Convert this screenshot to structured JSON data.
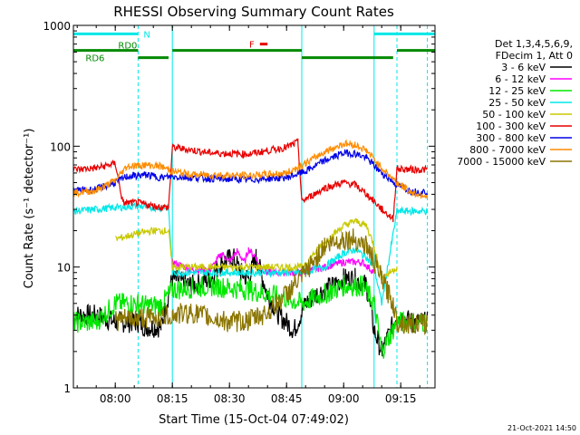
{
  "chart_data": {
    "type": "line",
    "title": "RHESSI Observing Summary Count Rates",
    "xlabel": "Start Time (15-Oct-04 07:49:02)",
    "ylabel": "Count Rate (s⁻¹ detector⁻¹)",
    "x_unit": "minutes",
    "xlim": [
      "07:49",
      "09:24"
    ],
    "x_ticks": [
      "08:00",
      "08:15",
      "08:30",
      "08:45",
      "09:00",
      "09:15"
    ],
    "yscale": "log",
    "ylim": [
      1,
      1000
    ],
    "y_ticks": [
      "1",
      "10",
      "100",
      "1000"
    ],
    "legend_position": "right",
    "legend_header": [
      "Det 1,3,4,5,6,9,",
      "FDecim 1, Att 0"
    ],
    "timestamp": "21-Oct-2021 14:50",
    "flags": [
      {
        "label": "N",
        "color": "#00e8e8",
        "segments": [
          [
            "07:49",
            "08:06"
          ],
          [
            "09:08",
            "09:24"
          ]
        ],
        "level": 850
      },
      {
        "label": "RD0",
        "color": "#008a00",
        "segments": [
          [
            "07:49",
            "08:06"
          ],
          [
            "08:15",
            "08:49"
          ],
          [
            "09:14",
            "09:24"
          ]
        ],
        "level": 620
      },
      {
        "label": "RD6",
        "color": "#008a00",
        "segments": [
          [
            "08:06",
            "08:14"
          ],
          [
            "08:49",
            "09:13"
          ]
        ],
        "level": 540
      },
      {
        "label": "F",
        "color": "#e80000",
        "segments": [
          [
            "08:38",
            "08:40"
          ]
        ],
        "level": 700
      }
    ],
    "vlines": [
      {
        "time": "07:49",
        "style": "solid",
        "color": "#00e8e8"
      },
      {
        "time": "08:06",
        "style": "dashed",
        "color": "#00e8e8"
      },
      {
        "time": "08:15",
        "style": "solid",
        "color": "#00e8e8"
      },
      {
        "time": "08:49",
        "style": "solid",
        "color": "#00e8e8"
      },
      {
        "time": "09:08",
        "style": "solid",
        "color": "#00e8e8"
      },
      {
        "time": "09:14",
        "style": "dashed",
        "color": "#00e8e8"
      },
      {
        "time": "09:22",
        "style": "dashed",
        "color": "#00e8e8"
      }
    ],
    "series": [
      {
        "name": "3 - 6 keV",
        "color": "#000000",
        "points": [
          [
            "07:49",
            4
          ],
          [
            "07:55",
            4
          ],
          [
            "08:00",
            3.5
          ],
          [
            "08:06",
            3.5
          ],
          [
            "08:08",
            3.2
          ],
          [
            "08:12",
            3.2
          ],
          [
            "08:15",
            8
          ],
          [
            "08:20",
            7
          ],
          [
            "08:25",
            8
          ],
          [
            "08:28",
            11
          ],
          [
            "08:31",
            12
          ],
          [
            "08:33",
            9
          ],
          [
            "08:35",
            8
          ],
          [
            "08:37",
            12
          ],
          [
            "08:40",
            6
          ],
          [
            "08:43",
            4
          ],
          [
            "08:47",
            3
          ],
          [
            "08:50",
            5
          ],
          [
            "08:53",
            6
          ],
          [
            "08:57",
            7
          ],
          [
            "09:00",
            8
          ],
          [
            "09:03",
            8
          ],
          [
            "09:06",
            7
          ],
          [
            "09:08",
            3
          ],
          [
            "09:10",
            2
          ],
          [
            "09:14",
            4
          ],
          [
            "09:18",
            3.5
          ],
          [
            "09:22",
            3.5
          ]
        ]
      },
      {
        "name": "6 - 12 keV",
        "color": "#ff00ff",
        "points": [
          [
            "07:49",
            null
          ],
          [
            "08:15",
            11
          ],
          [
            "08:20",
            9.5
          ],
          [
            "08:25",
            9.5
          ],
          [
            "08:28",
            13
          ],
          [
            "08:30",
            11
          ],
          [
            "08:32",
            13.5
          ],
          [
            "08:34",
            11
          ],
          [
            "08:35",
            14
          ],
          [
            "08:37",
            12
          ],
          [
            "08:38",
            10
          ],
          [
            "08:40",
            9
          ],
          [
            "08:45",
            9
          ],
          [
            "08:49",
            9
          ],
          [
            "08:55",
            10
          ],
          [
            "09:00",
            11
          ],
          [
            "09:05",
            11
          ],
          [
            "09:08",
            9
          ]
        ]
      },
      {
        "name": "12 - 25 keV",
        "color": "#00e800",
        "points": [
          [
            "07:49",
            3.5
          ],
          [
            "07:55",
            3.5
          ],
          [
            "08:00",
            5
          ],
          [
            "08:06",
            5
          ],
          [
            "08:08",
            4.8
          ],
          [
            "08:12",
            4.8
          ],
          [
            "08:15",
            6.5
          ],
          [
            "08:25",
            7
          ],
          [
            "08:35",
            6.5
          ],
          [
            "08:45",
            5.5
          ],
          [
            "08:49",
            5
          ],
          [
            "08:55",
            6
          ],
          [
            "09:00",
            7
          ],
          [
            "09:05",
            7
          ],
          [
            "09:08",
            5
          ],
          [
            "09:10",
            2
          ],
          [
            "09:14",
            3.5
          ],
          [
            "09:18",
            3.5
          ],
          [
            "09:22",
            3.5
          ]
        ]
      },
      {
        "name": "25 - 50 keV",
        "color": "#00e8e8",
        "points": [
          [
            "07:49",
            29
          ],
          [
            "08:00",
            31
          ],
          [
            "08:06",
            32
          ],
          [
            "08:10",
            31
          ],
          [
            "08:14",
            31
          ],
          [
            "08:15",
            9
          ],
          [
            "08:25",
            9
          ],
          [
            "08:35",
            9
          ],
          [
            "08:45",
            9
          ],
          [
            "08:49",
            9
          ],
          [
            "08:55",
            10
          ],
          [
            "09:00",
            13
          ],
          [
            "09:03",
            14
          ],
          [
            "09:06",
            12
          ],
          [
            "09:08",
            10
          ],
          [
            "09:10",
            5
          ],
          [
            "09:14",
            29
          ],
          [
            "09:18",
            29
          ],
          [
            "09:22",
            29
          ]
        ]
      },
      {
        "name": "50 - 100 keV",
        "color": "#c8c800",
        "points": [
          [
            "07:49",
            null
          ],
          [
            "08:00",
            17
          ],
          [
            "08:06",
            19
          ],
          [
            "08:10",
            20
          ],
          [
            "08:14",
            20
          ],
          [
            "08:15",
            10
          ],
          [
            "08:25",
            10
          ],
          [
            "08:35",
            10
          ],
          [
            "08:45",
            10
          ],
          [
            "08:49",
            10
          ],
          [
            "08:55",
            16
          ],
          [
            "09:00",
            22
          ],
          [
            "09:03",
            24
          ],
          [
            "09:06",
            22
          ],
          [
            "09:08",
            15
          ],
          [
            "09:10",
            8
          ],
          [
            "09:14",
            10
          ]
        ]
      },
      {
        "name": "100 - 300 keV",
        "color": "#e80000",
        "points": [
          [
            "07:49",
            64
          ],
          [
            "07:55",
            66
          ],
          [
            "08:00",
            72
          ],
          [
            "08:02",
            34
          ],
          [
            "08:06",
            34
          ],
          [
            "08:10",
            32
          ],
          [
            "08:14",
            31
          ],
          [
            "08:15",
            98
          ],
          [
            "08:25",
            88
          ],
          [
            "08:35",
            86
          ],
          [
            "08:45",
            98
          ],
          [
            "08:48",
            108
          ],
          [
            "08:49",
            35
          ],
          [
            "08:55",
            45
          ],
          [
            "09:00",
            50
          ],
          [
            "09:03",
            48
          ],
          [
            "09:06",
            40
          ],
          [
            "09:08",
            35
          ],
          [
            "09:10",
            30
          ],
          [
            "09:13",
            25
          ],
          [
            "09:14",
            65
          ],
          [
            "09:18",
            64
          ],
          [
            "09:22",
            64
          ]
        ]
      },
      {
        "name": "300 - 800 keV",
        "color": "#0000e8",
        "points": [
          [
            "07:49",
            43
          ],
          [
            "07:55",
            44
          ],
          [
            "08:00",
            50
          ],
          [
            "08:03",
            56
          ],
          [
            "08:08",
            58
          ],
          [
            "08:12",
            55
          ],
          [
            "08:15",
            56
          ],
          [
            "08:20",
            55
          ],
          [
            "08:25",
            54
          ],
          [
            "08:35",
            53
          ],
          [
            "08:45",
            55
          ],
          [
            "08:50",
            62
          ],
          [
            "08:55",
            76
          ],
          [
            "09:00",
            88
          ],
          [
            "09:03",
            87
          ],
          [
            "09:06",
            80
          ],
          [
            "09:10",
            60
          ],
          [
            "09:14",
            48
          ],
          [
            "09:18",
            42
          ],
          [
            "09:22",
            42
          ]
        ]
      },
      {
        "name": "800 - 7000 keV",
        "color": "#ff8c00",
        "points": [
          [
            "07:49",
            41
          ],
          [
            "07:55",
            43
          ],
          [
            "08:00",
            52
          ],
          [
            "08:03",
            68
          ],
          [
            "08:08",
            70
          ],
          [
            "08:12",
            68
          ],
          [
            "08:15",
            62
          ],
          [
            "08:20",
            58
          ],
          [
            "08:25",
            58
          ],
          [
            "08:35",
            57
          ],
          [
            "08:45",
            60
          ],
          [
            "08:50",
            72
          ],
          [
            "08:55",
            90
          ],
          [
            "09:00",
            105
          ],
          [
            "09:03",
            103
          ],
          [
            "09:06",
            92
          ],
          [
            "09:10",
            66
          ],
          [
            "09:14",
            50
          ],
          [
            "09:18",
            41
          ],
          [
            "09:22",
            39
          ]
        ]
      },
      {
        "name": "7000 - 15000 keV",
        "color": "#8b7500",
        "points": [
          [
            "07:49",
            null
          ],
          [
            "08:00",
            3.6
          ],
          [
            "08:06",
            3.8
          ],
          [
            "08:10",
            3.8
          ],
          [
            "08:15",
            4
          ],
          [
            "08:20",
            4.2
          ],
          [
            "08:25",
            3.8
          ],
          [
            "08:30",
            3.5
          ],
          [
            "08:35",
            3.6
          ],
          [
            "08:40",
            4.2
          ],
          [
            "08:45",
            6
          ],
          [
            "08:50",
            9
          ],
          [
            "08:55",
            15
          ],
          [
            "09:00",
            17
          ],
          [
            "09:03",
            17
          ],
          [
            "09:06",
            15
          ],
          [
            "09:10",
            8
          ],
          [
            "09:13",
            5
          ],
          [
            "09:14",
            3.5
          ],
          [
            "09:18",
            3.4
          ],
          [
            "09:22",
            3.4
          ]
        ]
      }
    ]
  }
}
